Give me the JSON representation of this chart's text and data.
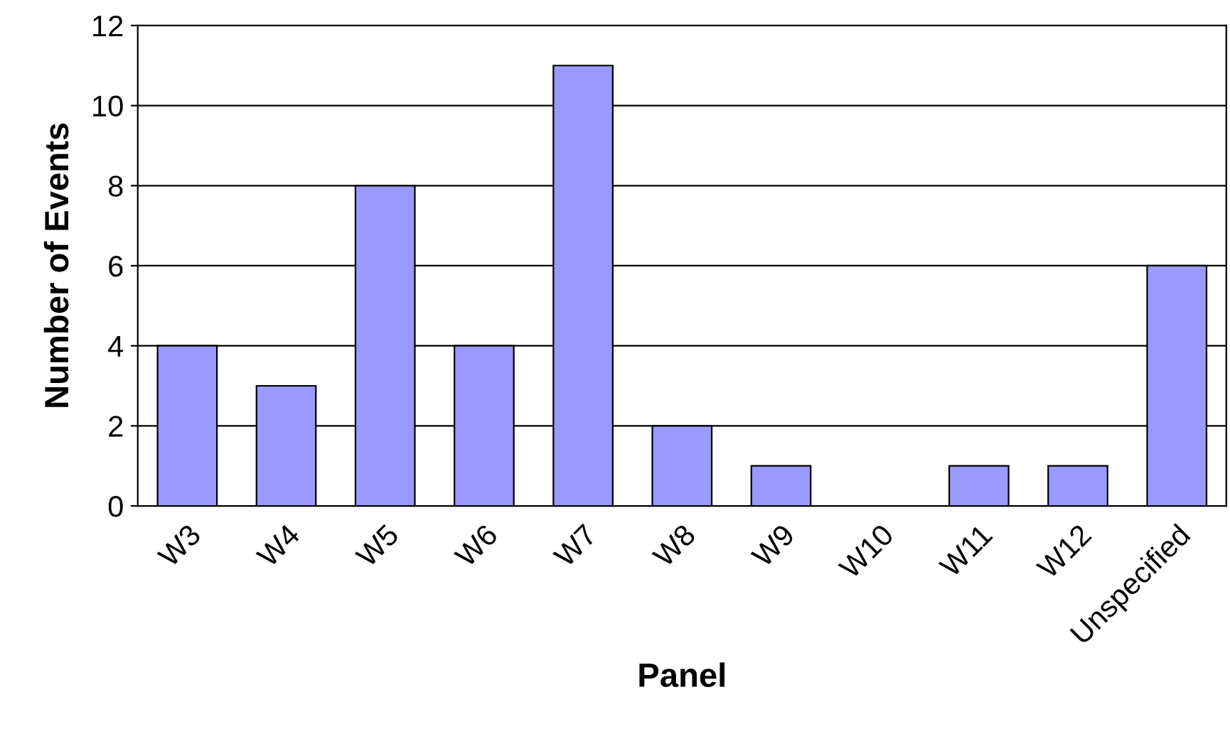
{
  "chart_data": {
    "type": "bar",
    "xlabel": "Panel",
    "ylabel": "Number of Events",
    "categories": [
      "W3",
      "W4",
      "W5",
      "W6",
      "W7",
      "W8",
      "W9",
      "W10",
      "W11",
      "W12",
      "Unspecified"
    ],
    "values": [
      4,
      3,
      8,
      4,
      11,
      2,
      1,
      0,
      1,
      1,
      6
    ],
    "color": "#9999ff",
    "ylim": [
      0,
      12
    ],
    "yticks": [
      0,
      2,
      4,
      6,
      8,
      10,
      12
    ],
    "grid": "y"
  }
}
